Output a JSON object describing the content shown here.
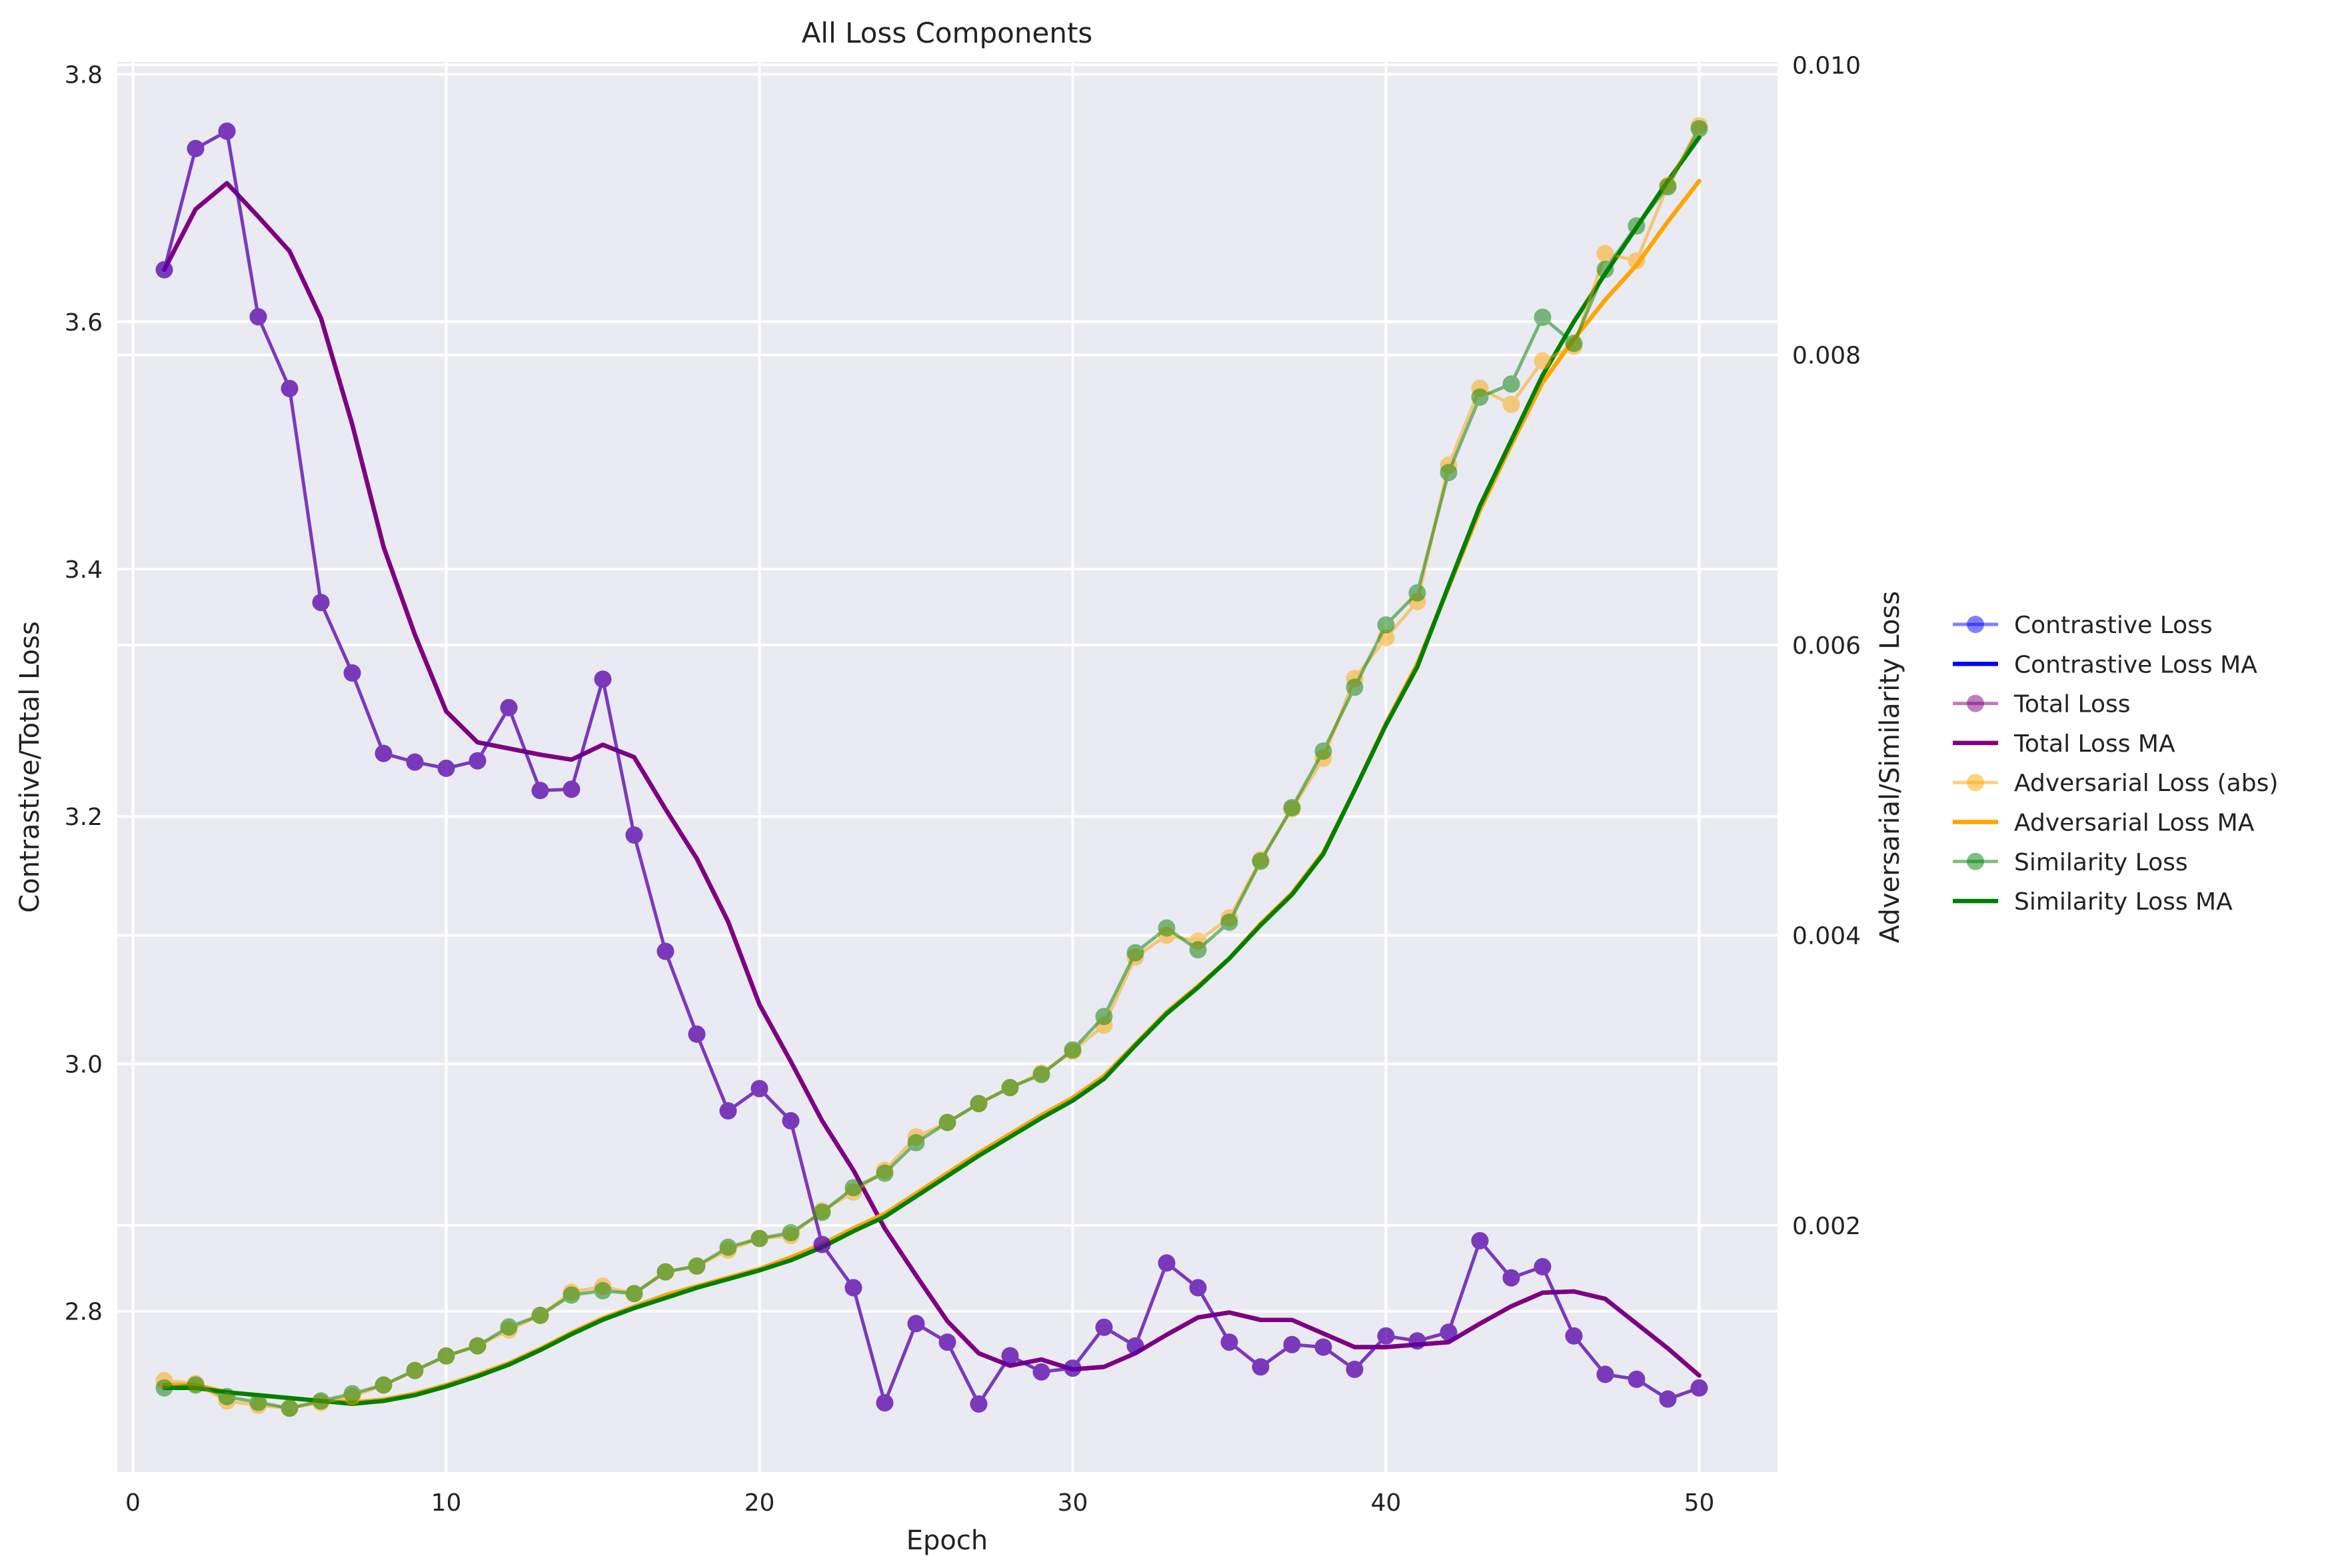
{
  "chart_data": {
    "type": "line",
    "title": "All Loss Components",
    "xlabel": "Epoch",
    "ylabel_left": "Contrastive/Total Loss",
    "ylabel_right": "Adversarial/Similarity Loss",
    "xlim": [
      -0.5,
      52.5
    ],
    "ylim_left": [
      2.67,
      3.81
    ],
    "ylim_right": [
      0.0003,
      0.01002
    ],
    "xticks": [
      0,
      10,
      20,
      30,
      40,
      50
    ],
    "yticks_left": [
      2.8,
      3.0,
      3.2,
      3.4,
      3.6,
      3.8
    ],
    "yticks_right": [
      0.002,
      0.004,
      0.006,
      0.008,
      0.01
    ],
    "ytick_labels_left": [
      "2.8",
      "3.0",
      "3.2",
      "3.4",
      "3.6",
      "3.8"
    ],
    "ytick_labels_right": [
      "0.002",
      "0.004",
      "0.006",
      "0.008",
      "0.010"
    ],
    "grid": true,
    "legend_position": "outside right",
    "x": [
      1,
      2,
      3,
      4,
      5,
      6,
      7,
      8,
      9,
      10,
      11,
      12,
      13,
      14,
      15,
      16,
      17,
      18,
      19,
      20,
      21,
      22,
      23,
      24,
      25,
      26,
      27,
      28,
      29,
      30,
      31,
      32,
      33,
      34,
      35,
      36,
      37,
      38,
      39,
      40,
      41,
      42,
      43,
      44,
      45,
      46,
      47,
      48,
      49,
      50
    ],
    "series": [
      {
        "name": "Contrastive Loss",
        "axis": "left",
        "style": "markers",
        "color": "#0000ff",
        "values": [
          3.642,
          3.74,
          3.754,
          3.604,
          3.546,
          3.373,
          3.316,
          3.251,
          3.244,
          3.239,
          3.245,
          3.288,
          3.221,
          3.222,
          3.311,
          3.185,
          3.091,
          3.024,
          2.962,
          2.98,
          2.954,
          2.854,
          2.819,
          2.726,
          2.79,
          2.775,
          2.725,
          2.764,
          2.751,
          2.754,
          2.787,
          2.772,
          2.839,
          2.819,
          2.775,
          2.755,
          2.773,
          2.771,
          2.753,
          2.78,
          2.776,
          2.783,
          2.857,
          2.827,
          2.836,
          2.78,
          2.749,
          2.745,
          2.729,
          2.738
        ]
      },
      {
        "name": "Contrastive Loss MA",
        "axis": "left",
        "style": "line",
        "color": "#0000ff",
        "values": [
          3.642,
          3.691,
          3.712,
          3.685,
          3.657,
          3.603,
          3.517,
          3.418,
          3.347,
          3.285,
          3.26,
          3.255,
          3.25,
          3.246,
          3.258,
          3.248,
          3.206,
          3.166,
          3.115,
          3.048,
          3.002,
          2.954,
          2.914,
          2.867,
          2.829,
          2.792,
          2.766,
          2.756,
          2.761,
          2.753,
          2.755,
          2.766,
          2.781,
          2.795,
          2.799,
          2.793,
          2.793,
          2.782,
          2.771,
          2.771,
          2.773,
          2.775,
          2.79,
          2.804,
          2.815,
          2.816,
          2.81,
          2.79,
          2.77,
          2.748
        ]
      },
      {
        "name": "Total Loss",
        "axis": "left",
        "style": "markers",
        "color": "#800080",
        "values": [
          3.642,
          3.74,
          3.754,
          3.604,
          3.546,
          3.373,
          3.316,
          3.251,
          3.244,
          3.239,
          3.245,
          3.288,
          3.221,
          3.222,
          3.311,
          3.185,
          3.091,
          3.024,
          2.962,
          2.98,
          2.954,
          2.854,
          2.819,
          2.726,
          2.79,
          2.775,
          2.725,
          2.764,
          2.751,
          2.754,
          2.787,
          2.772,
          2.839,
          2.819,
          2.775,
          2.755,
          2.773,
          2.771,
          2.753,
          2.78,
          2.776,
          2.783,
          2.857,
          2.827,
          2.836,
          2.78,
          2.749,
          2.745,
          2.729,
          2.738
        ]
      },
      {
        "name": "Total Loss MA",
        "axis": "left",
        "style": "line",
        "color": "#800080",
        "values": [
          3.642,
          3.691,
          3.712,
          3.685,
          3.657,
          3.603,
          3.517,
          3.418,
          3.347,
          3.285,
          3.26,
          3.255,
          3.25,
          3.246,
          3.258,
          3.248,
          3.206,
          3.166,
          3.115,
          3.048,
          3.002,
          2.954,
          2.914,
          2.867,
          2.829,
          2.792,
          2.766,
          2.756,
          2.761,
          2.753,
          2.755,
          2.766,
          2.781,
          2.795,
          2.799,
          2.793,
          2.793,
          2.782,
          2.771,
          2.771,
          2.773,
          2.775,
          2.79,
          2.804,
          2.815,
          2.816,
          2.81,
          2.79,
          2.77,
          2.748
        ]
      },
      {
        "name": "Adversarial Loss (abs)",
        "axis": "right",
        "style": "markers",
        "color": "#ffa500",
        "values": [
          0.00093,
          0.00091,
          0.00079,
          0.00076,
          0.00074,
          0.00078,
          0.00082,
          0.0009,
          0.001,
          0.0011,
          0.00117,
          0.00128,
          0.00138,
          0.00154,
          0.00158,
          0.00153,
          0.00168,
          0.00172,
          0.00183,
          0.00191,
          0.00193,
          0.0021,
          0.00223,
          0.00238,
          0.00261,
          0.00271,
          0.00284,
          0.00295,
          0.00305,
          0.0032,
          0.00338,
          0.00385,
          0.004,
          0.00396,
          0.00412,
          0.00452,
          0.00487,
          0.00522,
          0.00577,
          0.00605,
          0.0063,
          0.00724,
          0.00777,
          0.00766,
          0.00796,
          0.00806,
          0.0087,
          0.00865,
          0.00917,
          0.00958
        ]
      },
      {
        "name": "Adversarial Loss MA",
        "axis": "right",
        "style": "line",
        "color": "#ffa500",
        "values": [
          0.0009,
          0.0009,
          0.00085,
          0.00083,
          0.00081,
          0.00079,
          0.00078,
          0.0008,
          0.00084,
          0.0009,
          0.00097,
          0.00105,
          0.00115,
          0.00126,
          0.00136,
          0.00144,
          0.00152,
          0.00158,
          0.00164,
          0.0017,
          0.00178,
          0.00187,
          0.00198,
          0.00208,
          0.00222,
          0.00236,
          0.0025,
          0.00263,
          0.00276,
          0.00288,
          0.00303,
          0.00325,
          0.00347,
          0.00365,
          0.00384,
          0.00408,
          0.00429,
          0.00457,
          0.005,
          0.00546,
          0.00587,
          0.0064,
          0.00693,
          0.00738,
          0.00781,
          0.00811,
          0.00838,
          0.00862,
          0.00892,
          0.0092
        ]
      },
      {
        "name": "Similarity Loss",
        "axis": "right",
        "style": "markers",
        "color": "#008000",
        "values": [
          0.00088,
          0.0009,
          0.00082,
          0.00078,
          0.00074,
          0.00079,
          0.00084,
          0.0009,
          0.001,
          0.0011,
          0.00117,
          0.0013,
          0.00138,
          0.00152,
          0.00155,
          0.00153,
          0.00168,
          0.00172,
          0.00185,
          0.00191,
          0.00195,
          0.00209,
          0.00226,
          0.00236,
          0.00257,
          0.00271,
          0.00284,
          0.00295,
          0.00304,
          0.00321,
          0.00344,
          0.00388,
          0.00405,
          0.0039,
          0.00409,
          0.00451,
          0.00488,
          0.00527,
          0.00571,
          0.00614,
          0.00636,
          0.00719,
          0.00771,
          0.0078,
          0.00826,
          0.00808,
          0.00859,
          0.00889,
          0.00916,
          0.00956
        ]
      },
      {
        "name": "Similarity Loss MA",
        "axis": "right",
        "style": "line",
        "color": "#008000",
        "values": [
          0.00088,
          0.00088,
          0.00085,
          0.00083,
          0.00081,
          0.00079,
          0.00077,
          0.00079,
          0.00083,
          0.00089,
          0.00096,
          0.00104,
          0.00114,
          0.00125,
          0.00135,
          0.00143,
          0.0015,
          0.00157,
          0.00163,
          0.00169,
          0.00176,
          0.00185,
          0.00196,
          0.00206,
          0.0022,
          0.00234,
          0.00248,
          0.00261,
          0.00274,
          0.00286,
          0.00301,
          0.00324,
          0.00346,
          0.00364,
          0.00384,
          0.00407,
          0.00428,
          0.00456,
          0.005,
          0.00545,
          0.00585,
          0.00641,
          0.00696,
          0.00741,
          0.00786,
          0.00823,
          0.00856,
          0.00888,
          0.0092,
          0.0095
        ]
      }
    ]
  }
}
